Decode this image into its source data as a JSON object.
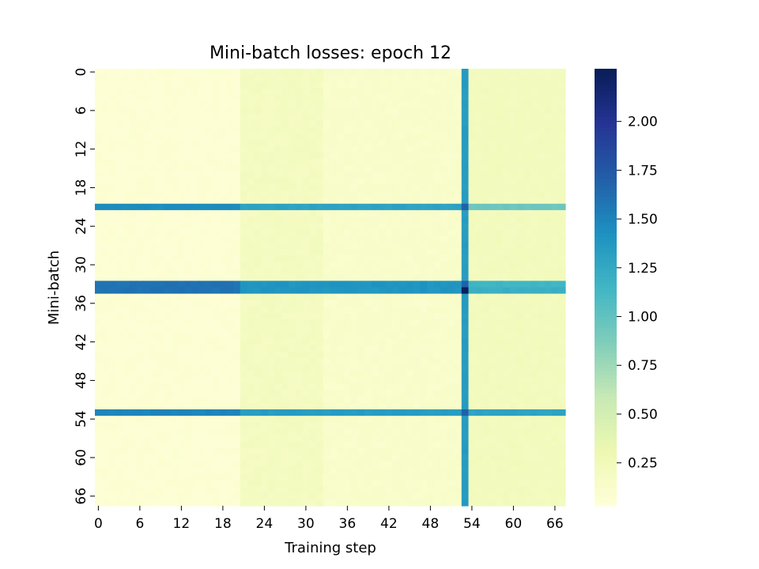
{
  "chart_data": {
    "type": "heatmap",
    "title": "Mini-batch losses: epoch 12",
    "xlabel": "Training step",
    "ylabel": "Mini-batch",
    "rows": 68,
    "cols": 68,
    "x_ticks": [
      "0",
      "6",
      "12",
      "18",
      "24",
      "30",
      "36",
      "42",
      "48",
      "54",
      "60",
      "66"
    ],
    "y_ticks": [
      "0",
      "6",
      "12",
      "18",
      "24",
      "30",
      "36",
      "42",
      "48",
      "54",
      "60",
      "66"
    ],
    "colorbar": {
      "colormap": "YlGnBu",
      "vmin": 0.03,
      "vmax": 2.27,
      "ticks": [
        "0.25",
        "0.50",
        "0.75",
        "1.00",
        "1.25",
        "1.50",
        "1.75",
        "2.00"
      ],
      "tick_values": [
        0.25,
        0.5,
        0.75,
        1.0,
        1.25,
        1.5,
        1.75,
        2.0
      ]
    },
    "values": {
      "base_loss_by_step_range": [
        {
          "steps": "0-20",
          "loss": 0.07
        },
        {
          "steps": "21-32",
          "loss": 0.2
        },
        {
          "steps": "33-52",
          "loss": 0.13
        },
        {
          "steps": "53",
          "loss": 1.35
        },
        {
          "steps": "54-67",
          "loss": 0.22
        }
      ],
      "high_loss_minibatches": [
        {
          "minibatch": 21,
          "loss_steps_0_20": 1.45,
          "loss_steps_21_52": 1.3,
          "loss_steps_54_67": 0.95
        },
        {
          "minibatch": 33,
          "loss_steps_0_20": 1.6,
          "loss_steps_21_52": 1.4,
          "loss_steps_54_67": 1.15
        },
        {
          "minibatch": 34,
          "loss_steps_0_20": 1.6,
          "loss_steps_21_52": 1.4,
          "loss_steps_54_67": 1.2
        },
        {
          "minibatch": 53,
          "loss_steps_0_20": 1.5,
          "loss_steps_21_52": 1.35,
          "loss_steps_54_67": 1.3
        }
      ],
      "max_cell": {
        "minibatch": 34,
        "step": 53,
        "loss": 2.25
      }
    }
  }
}
